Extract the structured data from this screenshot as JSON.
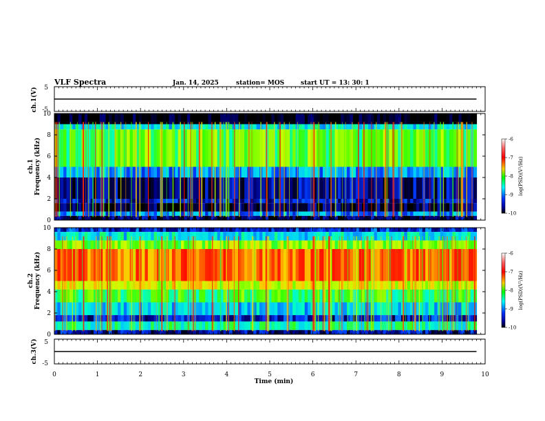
{
  "header": {
    "title": "VLF Spectra",
    "date": "Jan. 14, 2025",
    "station": "station= MOS",
    "start": "start  UT =   13: 30: 1"
  },
  "colors": {
    "ink": "#000000",
    "colormap": [
      "#ffffff",
      "#ff0000",
      "#ff9900",
      "#ffff00",
      "#00ff00",
      "#00ffff",
      "#0066ff",
      "#000099",
      "#000000"
    ]
  },
  "chart_data": [
    {
      "id": "ch1V",
      "type": "line",
      "ylabel": "ch.1(V)",
      "ylim": [
        -5,
        5
      ],
      "yticks": [
        "5",
        "-5"
      ],
      "xlim": [
        0,
        10
      ],
      "series": [
        {
          "x": [
            0,
            9.8
          ],
          "y": [
            0,
            0
          ]
        }
      ],
      "grid": false
    },
    {
      "id": "ch1spec",
      "type": "heatmap",
      "ylabel_line1": "ch.1",
      "ylabel_line2": "Frequency (kHz)",
      "ylim": [
        0,
        10
      ],
      "yticks": [
        "0",
        "2",
        "4",
        "6",
        "8",
        "10"
      ],
      "xlim": [
        0,
        10
      ],
      "data_end_min": 9.8,
      "colorbar": {
        "label": "log(PSD)(V²/Hz)",
        "ticks": [
          "-6",
          "-7",
          "-8",
          "-9",
          "-10"
        ],
        "range": [
          -10,
          -6
        ]
      },
      "bands": [
        {
          "f": [
            9.0,
            10.0
          ],
          "level": -10.0
        },
        {
          "f": [
            8.5,
            9.0
          ],
          "level": -8.6
        },
        {
          "f": [
            5.0,
            8.5
          ],
          "level": -8.0
        },
        {
          "f": [
            4.0,
            5.0
          ],
          "level": -8.9
        },
        {
          "f": [
            2.0,
            4.0
          ],
          "level": -9.6
        },
        {
          "f": [
            1.6,
            2.0
          ],
          "level": -9.4
        },
        {
          "f": [
            0.8,
            1.6
          ],
          "level": -9.8
        },
        {
          "f": [
            0.4,
            0.8
          ],
          "level": -9.0
        },
        {
          "f": [
            0.0,
            0.4
          ],
          "level": -9.7
        }
      ]
    },
    {
      "id": "ch2spec",
      "type": "heatmap",
      "ylabel_line1": "ch.2",
      "ylabel_line2": "Frequency (kHz)",
      "ylim": [
        0,
        10
      ],
      "yticks": [
        "0",
        "2",
        "4",
        "6",
        "8",
        "10"
      ],
      "xlim": [
        0,
        10
      ],
      "data_end_min": 9.8,
      "colorbar": {
        "label": "log(PSD)(V²/Hz)",
        "ticks": [
          "-6",
          "-7",
          "-8",
          "-9",
          "-10"
        ],
        "range": [
          -10,
          -6
        ]
      },
      "bands": [
        {
          "f": [
            9.6,
            10.0
          ],
          "level": -9.3
        },
        {
          "f": [
            8.8,
            9.6
          ],
          "level": -8.6
        },
        {
          "f": [
            8.0,
            8.8
          ],
          "level": -7.8
        },
        {
          "f": [
            5.0,
            8.0
          ],
          "level": -6.9
        },
        {
          "f": [
            4.2,
            5.0
          ],
          "level": -7.5
        },
        {
          "f": [
            3.0,
            4.2
          ],
          "level": -8.1
        },
        {
          "f": [
            1.8,
            3.0
          ],
          "level": -8.7
        },
        {
          "f": [
            1.2,
            1.8
          ],
          "level": -9.4
        },
        {
          "f": [
            0.4,
            1.2
          ],
          "level": -8.4
        },
        {
          "f": [
            0.0,
            0.4
          ],
          "level": -9.5
        }
      ]
    },
    {
      "id": "ch3V",
      "type": "line",
      "ylabel": "ch.3(V)",
      "ylim": [
        -5,
        5
      ],
      "yticks": [
        "5",
        "-5"
      ],
      "xlim": [
        0,
        10
      ],
      "series": [
        {
          "x": [
            0,
            9.8
          ],
          "y": [
            0,
            0
          ]
        }
      ],
      "grid": false
    }
  ],
  "xaxis": {
    "label": "Time (min)",
    "ticks": [
      "0",
      "1",
      "2",
      "3",
      "4",
      "5",
      "6",
      "7",
      "8",
      "9",
      "10"
    ]
  }
}
